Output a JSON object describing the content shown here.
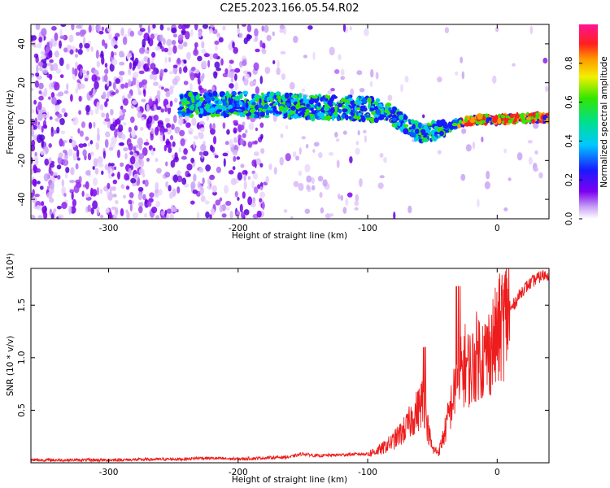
{
  "title": "C2E5.2023.166.05.54.R02",
  "colors": {
    "snr_line": "#ee1c1c",
    "track_low": "#4400dd",
    "background_speckle": "#8a1ee6"
  },
  "chart_data": [
    {
      "type": "heatmap",
      "title": "C2E5.2023.166.05.54.R02",
      "xlabel": "Height of straight line (km)",
      "ylabel": "Frequency (Hz)",
      "xlim": [
        -360,
        40
      ],
      "ylim": [
        -50,
        50
      ],
      "x_ticks": [
        -300,
        -200,
        -100,
        0
      ],
      "y_ticks": [
        -40,
        -20,
        0,
        20,
        40
      ],
      "x_tick_labels": [
        "-300",
        "-200",
        "-100",
        "0"
      ],
      "y_tick_labels": [
        "-40",
        "-20",
        "0",
        "20",
        "40"
      ],
      "colorbar": {
        "label": "Normalized spectral amplitude",
        "range": [
          0,
          1
        ],
        "ticks": [
          0.0,
          0.2,
          0.4,
          0.6,
          0.8
        ],
        "tick_labels": [
          "0.0",
          "0.2",
          "0.4",
          "0.6",
          "0.8"
        ],
        "colormap": "rainbow (white-violet-blue-cyan-green-yellow-red-magenta)"
      },
      "signal_track": [
        {
          "x": -240,
          "y": 9
        },
        {
          "x": -200,
          "y": 9
        },
        {
          "x": -160,
          "y": 8
        },
        {
          "x": -120,
          "y": 7
        },
        {
          "x": -100,
          "y": 7
        },
        {
          "x": -85,
          "y": 5
        },
        {
          "x": -70,
          "y": -2
        },
        {
          "x": -60,
          "y": -6
        },
        {
          "x": -50,
          "y": -5
        },
        {
          "x": -40,
          "y": -4
        },
        {
          "x": -30,
          "y": -1
        },
        {
          "x": -20,
          "y": 1
        },
        {
          "x": 0,
          "y": 1
        },
        {
          "x": 20,
          "y": 2
        },
        {
          "x": 40,
          "y": 2
        }
      ]
    },
    {
      "type": "line",
      "xlabel": "Height of straight line (km)",
      "ylabel": "SNR (10 * v/v)",
      "y_multiplier": "(x10⁴)",
      "xlim": [
        -360,
        40
      ],
      "ylim": [
        0,
        1.85
      ],
      "x_ticks": [
        -300,
        -200,
        -100,
        0
      ],
      "y_ticks": [
        0.5,
        1.0,
        1.5
      ],
      "x_tick_labels": [
        "-300",
        "-200",
        "-100",
        "0"
      ],
      "y_tick_labels": [
        "0.5",
        "1.0",
        "1.5"
      ],
      "series": [
        {
          "x": [
            -360,
            -300,
            -240,
            -230,
            -200,
            -160,
            -150,
            -140,
            -120,
            -100,
            -90,
            -80,
            -70,
            -65,
            -60,
            -57,
            -55,
            -50,
            -45,
            -40,
            -35,
            -30,
            -25,
            -20,
            -15,
            -10,
            -5,
            0,
            5,
            10,
            15,
            20,
            25,
            30,
            35,
            40
          ],
          "values": [
            0.02,
            0.02,
            0.03,
            0.04,
            0.03,
            0.05,
            0.08,
            0.06,
            0.07,
            0.08,
            0.12,
            0.2,
            0.32,
            0.42,
            0.5,
            0.62,
            0.4,
            0.12,
            0.1,
            0.3,
            0.55,
            0.75,
            0.9,
            0.85,
            1.0,
            0.95,
            1.05,
            1.15,
            1.3,
            1.45,
            1.55,
            1.65,
            1.7,
            1.75,
            1.78,
            1.8
          ]
        }
      ]
    }
  ]
}
